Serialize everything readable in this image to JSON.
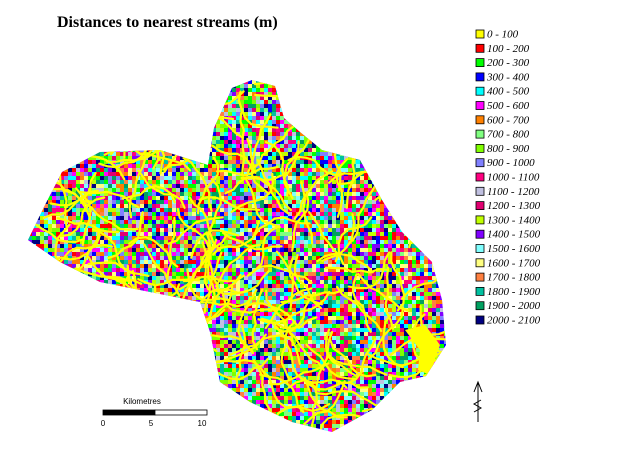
{
  "title": "Distances to nearest streams (m)",
  "legend": {
    "items": [
      {
        "label": "0 - 100",
        "color": "#ffff00"
      },
      {
        "label": "100 - 200",
        "color": "#ff0000"
      },
      {
        "label": "200 - 300",
        "color": "#00ff00"
      },
      {
        "label": "300 - 400",
        "color": "#0000ff"
      },
      {
        "label": "400 - 500",
        "color": "#00ffff"
      },
      {
        "label": "500 - 600",
        "color": "#ff00ff"
      },
      {
        "label": "600 - 700",
        "color": "#ff8000"
      },
      {
        "label": "700 - 800",
        "color": "#80ff80"
      },
      {
        "label": "800 - 900",
        "color": "#80ff00"
      },
      {
        "label": "900 - 1000",
        "color": "#8080ff"
      },
      {
        "label": "1000 - 1100",
        "color": "#ff0080"
      },
      {
        "label": "1100 - 1200",
        "color": "#c0c0e0"
      },
      {
        "label": "1200 - 1300",
        "color": "#e00070"
      },
      {
        "label": "1300 - 1400",
        "color": "#c0ff00"
      },
      {
        "label": "1400 - 1500",
        "color": "#8000ff"
      },
      {
        "label": "1500 - 1600",
        "color": "#80ffff"
      },
      {
        "label": "1600 - 1700",
        "color": "#ffff80"
      },
      {
        "label": "1700 - 1800",
        "color": "#ff8040"
      },
      {
        "label": "1800 - 1900",
        "color": "#00c0a0"
      },
      {
        "label": "1900 - 2000",
        "color": "#00a060"
      },
      {
        "label": "2000 - 2100",
        "color": "#000080"
      }
    ]
  },
  "scale_bar": {
    "title": "Kilometres",
    "labels": [
      "0",
      "5",
      "10"
    ]
  }
}
